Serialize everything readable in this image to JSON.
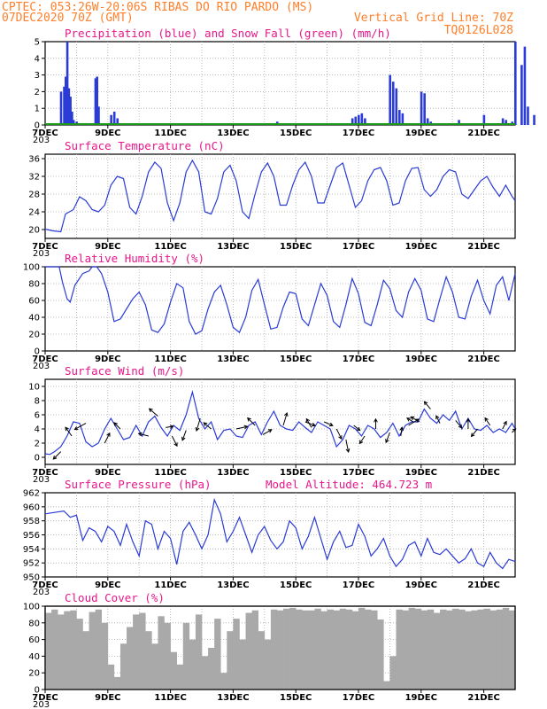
{
  "header": {
    "line1": "CPTEC:  053:26W-20:06S  RIBAS DO RIO PARDO (MS)",
    "line2_left": "07DEC2020 70Z (GMT)",
    "line2_right": "Vertical Grid Line: 70Z",
    "line3_right": "TQ0126L028"
  },
  "colors": {
    "header": "#ff7f2a",
    "panel_title": "#e8178a",
    "line": "#2a3bd6",
    "snow": "#1a9a1a",
    "cloud": "#a9a9a9",
    "grid": "#aaaaaa"
  },
  "x_axis": {
    "start": "2020-12-07T00:00Z",
    "end": "2020-12-22T00:00Z",
    "tick_labels": [
      "7DEC",
      "9DEC",
      "11DEC",
      "13DEC",
      "15DEC",
      "17DEC",
      "19DEC",
      "21DEC"
    ],
    "year_fragment": "203"
  },
  "chart_data": [
    {
      "id": "precip",
      "type": "bar",
      "title": "Precipitation (blue) and Snow Fall (green) (mm/h)",
      "ylim": [
        0,
        5
      ],
      "yticks": [
        "0",
        "1",
        "2",
        "3",
        "4",
        "5"
      ],
      "series": [
        {
          "name": "Precipitation",
          "color": "#2a3bd6",
          "x_days": [
            0.5,
            0.6,
            0.65,
            0.7,
            0.75,
            0.8,
            0.85,
            0.9,
            1.0,
            1.6,
            1.65,
            1.7,
            2.1,
            2.2,
            2.3,
            6.9,
            7.0,
            7.1,
            7.3,
            7.4,
            7.5,
            7.6,
            9.8,
            9.9,
            10.0,
            10.1,
            10.2,
            10.3,
            11.0,
            11.1,
            11.2,
            11.3,
            11.4,
            12.0,
            12.1,
            12.2,
            12.3,
            13.2,
            14.0,
            14.6,
            14.7,
            14.9,
            15.0,
            15.2,
            15.3,
            15.4,
            15.6
          ],
          "values": [
            2.0,
            2.3,
            2.9,
            5.0,
            2.2,
            1.7,
            0.8,
            0.3,
            0.2,
            2.8,
            2.9,
            1.1,
            0.6,
            0.8,
            0.4,
            0.05,
            0.05,
            0.05,
            0.05,
            0.2,
            0.05,
            0.05,
            0.4,
            0.5,
            0.6,
            0.7,
            0.4,
            0.1,
            3.0,
            2.6,
            2.2,
            0.9,
            0.7,
            2.0,
            1.9,
            0.4,
            0.2,
            0.3,
            0.6,
            0.4,
            0.3,
            0.2,
            5.0,
            3.6,
            4.7,
            1.1,
            0.6
          ]
        },
        {
          "name": "Snow Fall",
          "color": "#1a9a1a",
          "values": [
            0
          ]
        }
      ]
    },
    {
      "id": "temp",
      "type": "line",
      "title": "Surface Temperature (nC)",
      "ylim": [
        18,
        37
      ],
      "yticks": [
        "20",
        "24",
        "28",
        "32",
        "36"
      ],
      "x_days": [
        0,
        0.25,
        0.5,
        0.65,
        0.9,
        1.1,
        1.3,
        1.5,
        1.7,
        1.9,
        2.1,
        2.3,
        2.5,
        2.7,
        2.9,
        3.1,
        3.3,
        3.5,
        3.7,
        3.9,
        4.1,
        4.3,
        4.5,
        4.7,
        4.9,
        5.1,
        5.3,
        5.5,
        5.7,
        5.9,
        6.1,
        6.3,
        6.5,
        6.7,
        6.9,
        7.1,
        7.3,
        7.5,
        7.7,
        7.9,
        8.1,
        8.3,
        8.5,
        8.7,
        8.9,
        9.1,
        9.3,
        9.5,
        9.7,
        9.9,
        10.1,
        10.3,
        10.5,
        10.7,
        10.9,
        11.1,
        11.3,
        11.5,
        11.7,
        11.9,
        12.1,
        12.3,
        12.5,
        12.7,
        12.9,
        13.1,
        13.3,
        13.5,
        13.7,
        13.9,
        14.1,
        14.3,
        14.5,
        14.7,
        14.9,
        15.0
      ],
      "values": [
        20.1,
        19.7,
        19.5,
        23.5,
        24.5,
        27.4,
        26.5,
        24.5,
        24.0,
        25.5,
        30.0,
        32.0,
        31.5,
        25.0,
        23.5,
        27.5,
        33.0,
        35.2,
        33.8,
        26.0,
        22.0,
        26.0,
        33.0,
        35.6,
        33.0,
        24.0,
        23.5,
        27.0,
        33.0,
        34.5,
        31.0,
        24.0,
        22.5,
        28.0,
        33.0,
        35.0,
        32.0,
        25.5,
        25.5,
        30.0,
        33.5,
        35.2,
        32.0,
        26.0,
        26.0,
        30.0,
        34.0,
        35.0,
        30.0,
        25.0,
        26.5,
        31.0,
        33.5,
        34.0,
        31.0,
        25.5,
        26.0,
        31.0,
        33.8,
        34.0,
        29.0,
        27.5,
        29.0,
        32.0,
        33.5,
        33.0,
        28.0,
        27.0,
        29.0,
        31.0,
        32.0,
        29.5,
        27.5,
        30.0,
        27.5,
        26.5
      ]
    },
    {
      "id": "rh",
      "type": "line",
      "title": "Relative Humidity (%)",
      "ylim": [
        0,
        100
      ],
      "yticks": [
        "0",
        "20",
        "40",
        "60",
        "80",
        "100"
      ],
      "x_days": [
        0,
        0.2,
        0.45,
        0.55,
        0.7,
        0.8,
        0.95,
        1.2,
        1.4,
        1.5,
        1.65,
        1.8,
        2.0,
        2.2,
        2.4,
        2.6,
        2.8,
        3.0,
        3.2,
        3.4,
        3.6,
        3.8,
        4.0,
        4.2,
        4.4,
        4.6,
        4.8,
        5.0,
        5.2,
        5.4,
        5.6,
        5.8,
        6.0,
        6.2,
        6.4,
        6.6,
        6.8,
        7.0,
        7.2,
        7.4,
        7.6,
        7.8,
        8.0,
        8.2,
        8.4,
        8.6,
        8.8,
        9.0,
        9.2,
        9.4,
        9.6,
        9.8,
        10.0,
        10.2,
        10.4,
        10.6,
        10.8,
        11.0,
        11.2,
        11.4,
        11.6,
        11.8,
        12.0,
        12.2,
        12.4,
        12.6,
        12.8,
        13.0,
        13.2,
        13.4,
        13.6,
        13.8,
        14.0,
        14.2,
        14.4,
        14.6,
        14.8,
        15.0
      ],
      "values": [
        100,
        100,
        100,
        82,
        62,
        58,
        78,
        92,
        95,
        100,
        100,
        92,
        70,
        35,
        38,
        50,
        62,
        70,
        55,
        25,
        22,
        32,
        58,
        80,
        75,
        35,
        20,
        24,
        50,
        70,
        78,
        55,
        28,
        22,
        40,
        72,
        85,
        55,
        26,
        28,
        52,
        70,
        68,
        38,
        30,
        55,
        80,
        66,
        35,
        28,
        55,
        86,
        68,
        34,
        30,
        55,
        84,
        74,
        48,
        40,
        70,
        86,
        72,
        38,
        35,
        62,
        88,
        70,
        40,
        38,
        65,
        84,
        60,
        44,
        78,
        88,
        60,
        92
      ]
    },
    {
      "id": "wind",
      "type": "line",
      "title": "Surface Wind (m/s)",
      "ylim": [
        -1,
        11
      ],
      "yticks": [
        "0",
        "2",
        "4",
        "6",
        "8",
        "10"
      ],
      "x_days": [
        0,
        0.15,
        0.3,
        0.5,
        0.7,
        0.9,
        1.1,
        1.3,
        1.5,
        1.7,
        1.9,
        2.1,
        2.3,
        2.5,
        2.7,
        2.9,
        3.1,
        3.3,
        3.5,
        3.7,
        3.9,
        4.1,
        4.3,
        4.5,
        4.7,
        4.9,
        5.1,
        5.3,
        5.5,
        5.7,
        5.9,
        6.1,
        6.3,
        6.5,
        6.7,
        6.9,
        7.1,
        7.3,
        7.5,
        7.7,
        7.9,
        8.1,
        8.3,
        8.5,
        8.7,
        8.9,
        9.1,
        9.3,
        9.5,
        9.7,
        9.9,
        10.1,
        10.3,
        10.5,
        10.7,
        10.9,
        11.1,
        11.3,
        11.5,
        11.7,
        11.9,
        12.1,
        12.3,
        12.5,
        12.7,
        12.9,
        13.1,
        13.3,
        13.5,
        13.7,
        13.9,
        14.1,
        14.3,
        14.5,
        14.7,
        14.9,
        15.0
      ],
      "values": [
        0.5,
        0.4,
        0.8,
        1.5,
        3.0,
        5.0,
        4.8,
        2.2,
        1.5,
        2.0,
        4.0,
        5.5,
        4.0,
        2.5,
        2.8,
        4.5,
        3.0,
        5.0,
        5.8,
        4.2,
        3.0,
        4.5,
        3.8,
        6.0,
        9.2,
        5.5,
        4.0,
        5.0,
        2.5,
        3.8,
        4.0,
        3.0,
        2.8,
        4.5,
        5.0,
        3.2,
        5.0,
        6.5,
        4.5,
        4.0,
        3.8,
        5.0,
        4.2,
        3.5,
        5.0,
        4.5,
        4.0,
        1.5,
        2.5,
        4.5,
        4.0,
        3.0,
        4.5,
        4.0,
        2.8,
        3.5,
        4.8,
        3.0,
        4.5,
        5.0,
        5.0,
        6.8,
        5.5,
        4.8,
        6.0,
        5.2,
        6.5,
        4.0,
        5.5,
        4.0,
        3.8,
        4.5,
        3.5,
        4.0,
        3.5,
        4.8,
        4.0
      ],
      "arrows": {
        "x_days": [
          0.5,
          0.85,
          1.3,
          1.9,
          2.4,
          3.3,
          3.6,
          3.85,
          4.05,
          4.5,
          4.95,
          5.3,
          6.1,
          6.7,
          6.95,
          7.6,
          8.3,
          8.5,
          8.9,
          9.3,
          9.6,
          9.85,
          10.2,
          10.55,
          11.0,
          11.35,
          11.6,
          11.75,
          11.95,
          12.3,
          12.6,
          13.1,
          13.5,
          13.8,
          14.2,
          14.6,
          14.9
        ],
        "u": [
          -0.6,
          -0.5,
          -0.9,
          0.4,
          -0.5,
          -0.8,
          -0.7,
          0.6,
          0.4,
          -0.3,
          -0.3,
          -0.6,
          0.9,
          -0.6,
          0.7,
          0.3,
          0.8,
          -0.4,
          0.7,
          0.4,
          0.2,
          0.5,
          -0.4,
          0.0,
          -0.3,
          0.1,
          0.8,
          -0.5,
          -0.7,
          -0.5,
          -0.3,
          0.5,
          0.0,
          -0.5,
          -0.4,
          0.3,
          0.3
        ],
        "v": [
          -0.6,
          0.7,
          -0.5,
          0.8,
          0.5,
          0.2,
          0.6,
          0.1,
          -0.8,
          -0.8,
          -1.0,
          0.5,
          0.2,
          0.6,
          0.4,
          1.0,
          -0.3,
          0.7,
          -0.3,
          -0.8,
          -1.0,
          -0.4,
          -0.6,
          0.8,
          -0.8,
          0.7,
          0.5,
          0.3,
          0.4,
          0.6,
          0.6,
          -0.6,
          0.8,
          -0.6,
          0.6,
          0.6,
          0.3
        ]
      }
    },
    {
      "id": "pressure",
      "type": "line",
      "title": "Surface Pressure (hPa)",
      "annotation": "Model Altitude: 464.723 m",
      "ylim": [
        950,
        962
      ],
      "yticks": [
        "950",
        "952",
        "954",
        "956",
        "958",
        "960",
        "962"
      ],
      "x_days": [
        0,
        0.3,
        0.6,
        0.8,
        1.0,
        1.2,
        1.4,
        1.6,
        1.8,
        2.0,
        2.2,
        2.4,
        2.6,
        2.8,
        3.0,
        3.2,
        3.4,
        3.6,
        3.8,
        4.0,
        4.2,
        4.4,
        4.6,
        4.8,
        5.0,
        5.2,
        5.4,
        5.6,
        5.8,
        6.0,
        6.2,
        6.4,
        6.6,
        6.8,
        7.0,
        7.2,
        7.4,
        7.6,
        7.8,
        8.0,
        8.2,
        8.4,
        8.6,
        8.8,
        9.0,
        9.2,
        9.4,
        9.6,
        9.8,
        10.0,
        10.2,
        10.4,
        10.6,
        10.8,
        11.0,
        11.2,
        11.4,
        11.6,
        11.8,
        12.0,
        12.2,
        12.4,
        12.6,
        12.8,
        13.0,
        13.2,
        13.4,
        13.6,
        13.8,
        14.0,
        14.2,
        14.4,
        14.6,
        14.8,
        15.0
      ],
      "values": [
        959.0,
        959.2,
        959.4,
        958.5,
        958.8,
        955.2,
        957.0,
        956.5,
        955.0,
        957.2,
        956.5,
        954.5,
        957.5,
        955.0,
        953.0,
        958.0,
        957.5,
        954.0,
        956.5,
        955.5,
        951.8,
        956.5,
        957.8,
        956.0,
        954.0,
        956.0,
        961.0,
        959.0,
        955.0,
        956.5,
        958.5,
        956.0,
        953.5,
        956.0,
        957.2,
        955.2,
        954.0,
        955.0,
        958.0,
        957.0,
        954.0,
        955.8,
        958.5,
        955.5,
        952.5,
        955.0,
        956.5,
        954.2,
        954.5,
        957.5,
        955.8,
        953.0,
        954.0,
        955.5,
        953.0,
        951.5,
        952.5,
        954.5,
        955.0,
        953.0,
        955.5,
        953.5,
        953.2,
        954.0,
        953.0,
        952.0,
        952.6,
        954.0,
        952.0,
        951.5,
        953.5,
        952.0,
        951.2,
        952.5,
        952.2
      ]
    },
    {
      "id": "cloud",
      "type": "area",
      "title": "Cloud Cover (%)",
      "ylim": [
        0,
        100
      ],
      "yticks": [
        "0",
        "20",
        "40",
        "60",
        "80",
        "100"
      ],
      "x_days": [
        0,
        0.2,
        0.4,
        0.6,
        0.8,
        1.0,
        1.2,
        1.4,
        1.6,
        1.8,
        2.0,
        2.2,
        2.4,
        2.6,
        2.8,
        3.0,
        3.2,
        3.4,
        3.6,
        3.8,
        4.0,
        4.2,
        4.4,
        4.6,
        4.8,
        5.0,
        5.2,
        5.4,
        5.6,
        5.8,
        6.0,
        6.2,
        6.4,
        6.6,
        6.8,
        7.0,
        7.2,
        7.4,
        7.6,
        7.8,
        8.0,
        8.2,
        8.4,
        8.6,
        8.8,
        9.0,
        9.2,
        9.4,
        9.6,
        9.8,
        10.0,
        10.2,
        10.4,
        10.6,
        10.8,
        11.0,
        11.2,
        11.4,
        11.6,
        11.8,
        12.0,
        12.2,
        12.4,
        12.6,
        12.8,
        13.0,
        13.2,
        13.4,
        13.6,
        13.8,
        14.0,
        14.2,
        14.4,
        14.6,
        14.8,
        15.0
      ],
      "values": [
        92,
        96,
        90,
        94,
        95,
        85,
        70,
        93,
        96,
        80,
        30,
        15,
        55,
        75,
        90,
        92,
        70,
        55,
        88,
        80,
        45,
        30,
        80,
        60,
        90,
        40,
        50,
        85,
        20,
        70,
        85,
        60,
        92,
        95,
        70,
        60,
        96,
        95,
        97,
        98,
        96,
        95,
        95,
        97,
        94,
        96,
        95,
        97,
        96,
        94,
        98,
        96,
        95,
        84,
        10,
        40,
        96,
        95,
        98,
        97,
        95,
        96,
        92,
        96,
        95,
        97,
        96,
        94,
        95,
        96,
        97,
        95,
        96,
        98,
        95,
        94
      ]
    }
  ]
}
